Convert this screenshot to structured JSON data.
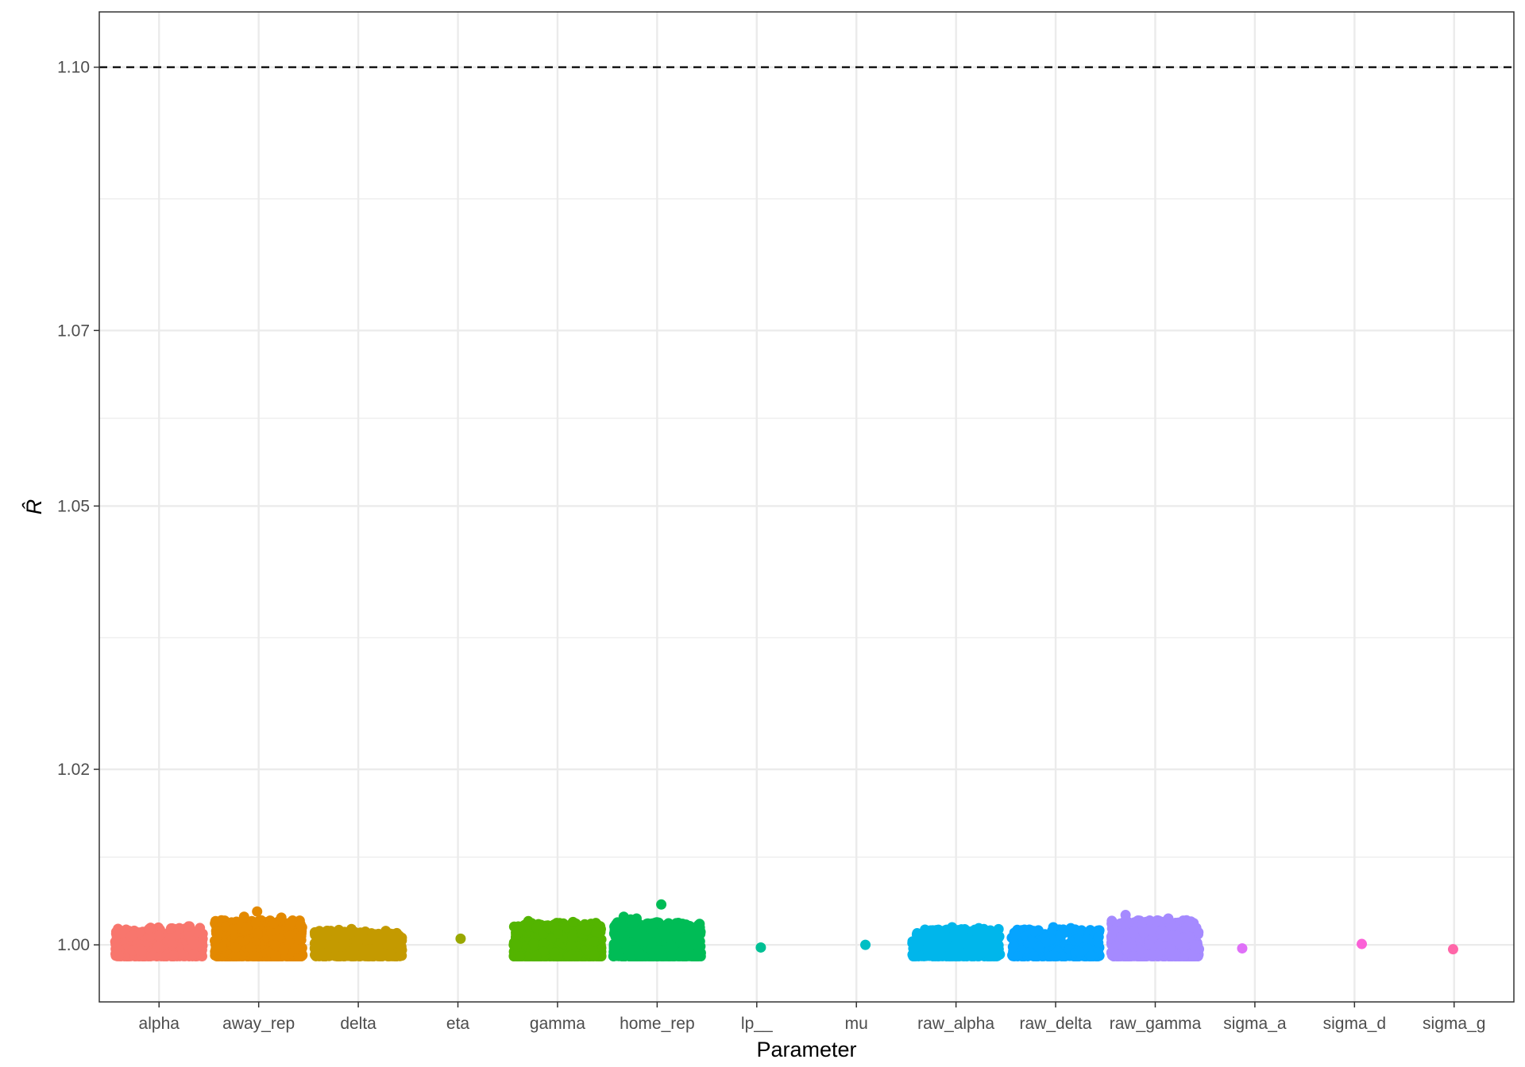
{
  "chart_data": {
    "type": "scatter",
    "title": "",
    "xlabel": "Parameter",
    "ylabel": "R̂",
    "ylim": [
      0.9935,
      1.1063
    ],
    "y_ticks": [
      1.0,
      1.02,
      1.05,
      1.07,
      1.1
    ],
    "y_tick_labels": [
      "1.00",
      "1.02",
      "1.05",
      "1.07",
      "1.10"
    ],
    "reference_line": {
      "y": 1.1,
      "style": "dashed",
      "color": "#000000"
    },
    "grid": true,
    "legend": "none",
    "categories": [
      "alpha",
      "away_rep",
      "delta",
      "eta",
      "gamma",
      "home_rep",
      "lp__",
      "mu",
      "raw_alpha",
      "raw_delta",
      "raw_gamma",
      "sigma_a",
      "sigma_d",
      "sigma_g"
    ],
    "series": [
      {
        "category": "alpha",
        "color": "#F8766D",
        "n_points": 420,
        "min": 0.9987,
        "max": 1.002,
        "outliers": [
          1.0021,
          1.0019,
          1.0021
        ]
      },
      {
        "category": "away_rep",
        "color": "#E38900",
        "n_points": 900,
        "min": 0.9987,
        "max": 1.0028,
        "outliers": [
          1.0038,
          1.0031,
          1.0032
        ]
      },
      {
        "category": "delta",
        "color": "#C49A00",
        "n_points": 420,
        "min": 0.9987,
        "max": 1.0016,
        "outliers": [
          1.0018,
          1.0017,
          1.0016
        ]
      },
      {
        "category": "eta",
        "color": "#99A800",
        "n_points": 1,
        "values": [
          1.0007
        ]
      },
      {
        "category": "gamma",
        "color": "#53B400",
        "n_points": 900,
        "min": 0.9987,
        "max": 1.0025,
        "outliers": [
          1.0027,
          1.0026
        ]
      },
      {
        "category": "home_rep",
        "color": "#00BC56",
        "n_points": 900,
        "min": 0.9987,
        "max": 1.0026,
        "outliers": [
          1.0046,
          1.0032,
          1.003,
          1.0029
        ]
      },
      {
        "category": "lp__",
        "color": "#00C094",
        "n_points": 1,
        "values": [
          0.9997
        ]
      },
      {
        "category": "mu",
        "color": "#00BFC4",
        "n_points": 1,
        "values": [
          1.0
        ]
      },
      {
        "category": "raw_alpha",
        "color": "#00B6EB",
        "n_points": 420,
        "min": 0.9987,
        "max": 1.0018,
        "outliers": [
          1.002,
          1.0019
        ]
      },
      {
        "category": "raw_delta",
        "color": "#06A4FF",
        "n_points": 420,
        "min": 0.9987,
        "max": 1.0018,
        "outliers": [
          1.002,
          1.0019
        ]
      },
      {
        "category": "raw_gamma",
        "color": "#A58AFF",
        "n_points": 900,
        "min": 0.9987,
        "max": 1.0028,
        "outliers": [
          1.0034,
          1.003
        ]
      },
      {
        "category": "sigma_a",
        "color": "#DF70F8",
        "n_points": 1,
        "values": [
          0.9996
        ]
      },
      {
        "category": "sigma_d",
        "color": "#FB61D7",
        "n_points": 1,
        "values": [
          1.0001
        ]
      },
      {
        "category": "sigma_g",
        "color": "#FF66A8",
        "n_points": 1,
        "values": [
          0.9995
        ]
      }
    ]
  }
}
